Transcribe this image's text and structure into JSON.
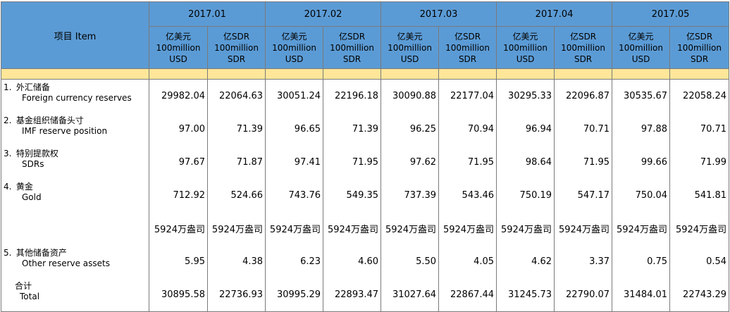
{
  "header": {
    "item_label": "项目 Item",
    "months": [
      "2017.01",
      "2017.02",
      "2017.03",
      "2017.04",
      "2017.05"
    ],
    "unit_usd": [
      "亿美元",
      "100million",
      "USD"
    ],
    "unit_sdr": [
      "亿SDR",
      "100million",
      "SDR"
    ]
  },
  "rows": [
    {
      "cn": "外汇储备",
      "en": "Foreign currency reserves",
      "idx": "1.",
      "values": [
        "29982.04",
        "22064.63",
        "30051.24",
        "22196.18",
        "30090.88",
        "22177.04",
        "30295.33",
        "22096.87",
        "30535.67",
        "22058.24"
      ]
    },
    {
      "cn": "基金组织储备头寸",
      "en": "IMF reserve position",
      "idx": "2.",
      "values": [
        "97.00",
        "71.39",
        "96.65",
        "71.39",
        "96.25",
        "70.94",
        "96.94",
        "70.71",
        "97.88",
        "70.71"
      ]
    },
    {
      "cn": "特别提款权",
      "en": "SDRs",
      "idx": "3.",
      "values": [
        "97.67",
        "71.87",
        "97.41",
        "71.95",
        "97.62",
        "71.95",
        "98.64",
        "71.95",
        "99.66",
        "71.99"
      ]
    },
    {
      "cn": "黄金",
      "en": "Gold",
      "idx": "4.",
      "values": [
        "712.92",
        "524.66",
        "743.76",
        "549.35",
        "737.39",
        "543.46",
        "750.19",
        "547.17",
        "750.04",
        "541.81"
      ]
    },
    {
      "cn": "",
      "en": "",
      "idx": "",
      "values": [
        "5924万盎司",
        "5924万盎司",
        "5924万盎司",
        "5924万盎司",
        "5924万盎司",
        "5924万盎司",
        "5924万盎司",
        "5924万盎司",
        "5924万盎司",
        "5924万盎司"
      ]
    },
    {
      "cn": "其他储备资产",
      "en": "Other reserve assets",
      "idx": "5.",
      "values": [
        "5.95",
        "4.38",
        "6.23",
        "4.60",
        "5.50",
        "4.05",
        "4.62",
        "3.37",
        "0.75",
        "0.54"
      ]
    },
    {
      "cn": "合计",
      "en": "Total",
      "idx": "",
      "values": [
        "30895.58",
        "22736.93",
        "30995.29",
        "22893.47",
        "31027.64",
        "22867.44",
        "31245.73",
        "22790.07",
        "31484.01",
        "22743.29"
      ]
    }
  ]
}
